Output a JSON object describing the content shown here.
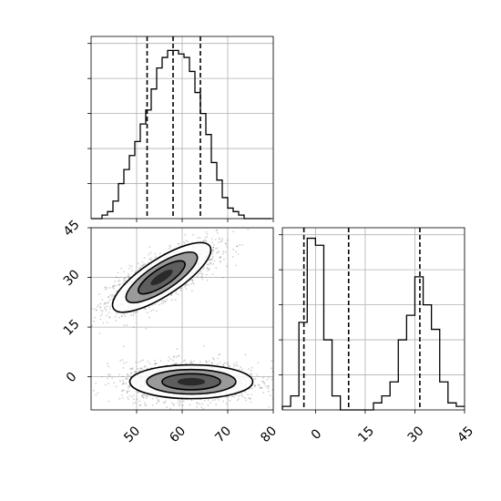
{
  "chart_data": {
    "type": "corner",
    "parameters": [
      "",
      ""
    ],
    "colors": {
      "ink": "#000000",
      "grid": "#b0b0b0",
      "scatter": "#777777",
      "fill_dark": "#2a2a2a",
      "fill_mid": "#5e5e5e",
      "fill_light": "#9a9a9a"
    },
    "grid": true,
    "param0": {
      "range": [
        40,
        80
      ],
      "ticks": [
        50,
        60,
        70,
        80
      ],
      "tick_labels": [
        "50",
        "60",
        "70",
        "80"
      ],
      "quantiles": [
        52.3,
        58.0,
        64.0
      ],
      "hist_bins": [
        40,
        41.2,
        42.4,
        43.6,
        44.8,
        46.0,
        47.2,
        48.4,
        49.6,
        50.8,
        52.0,
        53.2,
        54.4,
        55.6,
        56.8,
        58.0,
        59.2,
        60.4,
        61.6,
        62.8,
        64.0,
        65.2,
        66.4,
        67.6,
        68.8,
        70.0,
        71.2,
        72.4,
        73.6,
        74.8,
        76.0,
        77.2,
        78.4,
        79.6
      ],
      "hist_counts": [
        0,
        0,
        1,
        2,
        5,
        10,
        14,
        18,
        22,
        27,
        31,
        37,
        43,
        46,
        48,
        48,
        47,
        46,
        42,
        36,
        30,
        24,
        16,
        11,
        6,
        3,
        2,
        1,
        0,
        0,
        0,
        0,
        0
      ],
      "hist_max": 52
    },
    "param1": {
      "range": [
        -10,
        45
      ],
      "ticks": [
        0,
        15,
        30,
        45
      ],
      "tick_labels": [
        "0",
        "15",
        "30",
        "45"
      ],
      "quantiles": [
        -3.5,
        10.0,
        31.5
      ],
      "hist_bins": [
        -10,
        -7.5,
        -5,
        -2.5,
        0,
        2.5,
        5,
        7.5,
        10,
        12.5,
        15,
        17.5,
        20,
        22.5,
        25,
        27.5,
        30,
        32.5,
        35,
        37.5,
        40,
        42.5,
        45
      ],
      "hist_counts": [
        1,
        4,
        25,
        49,
        47,
        20,
        4,
        0,
        0,
        0,
        0,
        2,
        4,
        8,
        20,
        27,
        38,
        30,
        23,
        8,
        2,
        1
      ],
      "hist_max": 52
    },
    "joint": {
      "clusters": [
        {
          "name": "upper mode",
          "center": [
            55.5,
            30.0
          ],
          "spread": [
            6.0,
            5.0
          ],
          "correlation": 0.75
        },
        {
          "name": "lower mode",
          "center": [
            62.0,
            -1.5
          ],
          "spread": [
            7.5,
            3.0
          ],
          "correlation": 0.0
        }
      ]
    }
  }
}
